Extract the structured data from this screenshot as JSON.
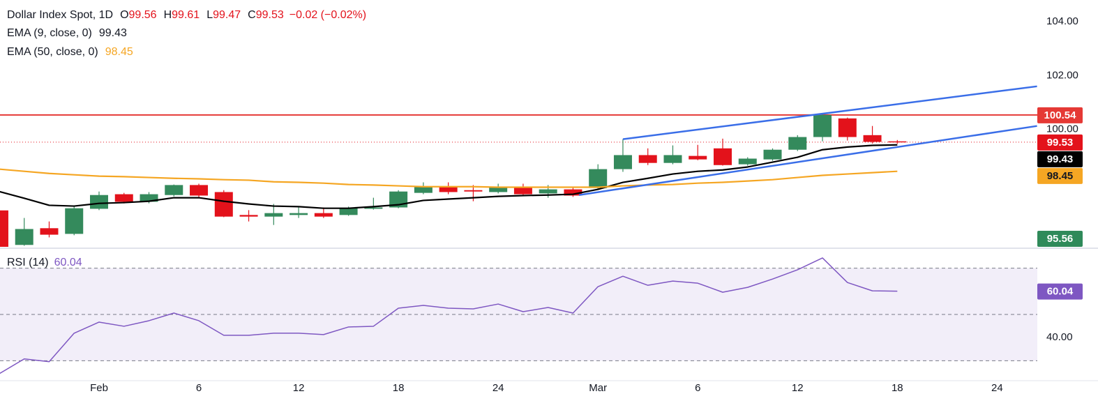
{
  "chart_data": [
    {
      "type": "candlestick",
      "title": "Dollar Index Spot, 1D",
      "ohlc_labels": [
        "O",
        "H",
        "L",
        "C"
      ],
      "change": "−0.02 (−0.02%)",
      "categories": [
        null,
        null,
        null,
        null,
        "Feb",
        null,
        null,
        null,
        "6",
        null,
        null,
        null,
        "12",
        null,
        null,
        null,
        "18",
        null,
        null,
        null,
        "24",
        null,
        null,
        null,
        "Mar",
        null,
        null,
        null,
        "6",
        null,
        null,
        null,
        "12",
        null,
        null,
        null,
        "18",
        null,
        null,
        null,
        "24"
      ],
      "open": [
        97.0,
        95.72,
        96.34,
        96.13,
        97.06,
        97.6,
        97.32,
        97.57,
        97.94,
        97.68,
        96.83,
        96.77,
        96.83,
        96.9,
        96.83,
        97.06,
        97.11,
        97.65,
        97.88,
        97.75,
        97.68,
        97.88,
        97.63,
        97.78,
        97.83,
        98.53,
        99.05,
        98.76,
        99.02,
        99.3,
        98.71,
        98.89,
        99.25,
        99.72,
        100.41,
        99.79,
        99.56,
        null,
        null,
        null,
        null
      ],
      "high": [
        97.1,
        96.72,
        96.59,
        97.14,
        97.7,
        97.65,
        97.68,
        97.96,
        97.99,
        97.75,
        97.01,
        97.24,
        97.11,
        97.11,
        97.14,
        97.47,
        97.75,
        98.04,
        98.04,
        97.94,
        97.99,
        97.99,
        97.94,
        97.88,
        98.71,
        99.64,
        99.3,
        99.41,
        99.43,
        99.66,
        98.97,
        99.3,
        99.79,
        100.59,
        100.44,
        100.13,
        99.61,
        null,
        null,
        null,
        null
      ],
      "low": [
        95.5,
        95.69,
        96.0,
        96.08,
        97.01,
        97.26,
        97.26,
        97.52,
        97.5,
        96.75,
        96.59,
        96.46,
        96.72,
        96.72,
        96.8,
        97.03,
        97.08,
        97.6,
        97.6,
        97.34,
        97.63,
        97.57,
        97.47,
        97.5,
        97.78,
        98.43,
        98.68,
        98.71,
        98.86,
        98.66,
        98.66,
        98.84,
        99.2,
        99.56,
        99.59,
        99.48,
        99.47,
        null,
        null,
        null,
        null
      ],
      "close": [
        95.6,
        96.31,
        96.1,
        97.08,
        97.57,
        97.32,
        97.6,
        97.94,
        97.55,
        96.77,
        96.77,
        96.9,
        96.9,
        96.77,
        97.08,
        97.11,
        97.7,
        97.86,
        97.68,
        97.7,
        97.88,
        97.6,
        97.78,
        97.55,
        98.53,
        99.05,
        98.76,
        99.05,
        98.89,
        98.68,
        98.92,
        99.25,
        99.72,
        100.54,
        99.72,
        99.54,
        99.53,
        null,
        null,
        null,
        null
      ],
      "up_color": "#348a5c",
      "down_color": "#e3121b",
      "series": [
        {
          "name": "EMA (9, close, 0)",
          "color": "#000000",
          "values": [
            97.7,
            97.45,
            97.19,
            97.16,
            97.26,
            97.29,
            97.34,
            97.47,
            97.47,
            97.34,
            97.24,
            97.16,
            97.14,
            97.08,
            97.08,
            97.14,
            97.21,
            97.37,
            97.42,
            97.47,
            97.52,
            97.55,
            97.57,
            97.6,
            97.78,
            98.04,
            98.19,
            98.35,
            98.45,
            98.5,
            98.61,
            98.79,
            98.97,
            99.25,
            99.35,
            99.41,
            99.43,
            null,
            null,
            null,
            null
          ]
        },
        {
          "name": "EMA (50, close, 0)",
          "color": "#f5a623",
          "values": [
            98.53,
            98.45,
            98.37,
            98.32,
            98.27,
            98.25,
            98.22,
            98.19,
            98.17,
            98.14,
            98.12,
            98.06,
            98.04,
            98.01,
            97.96,
            97.94,
            97.91,
            97.88,
            97.88,
            97.88,
            97.86,
            97.86,
            97.86,
            97.86,
            97.86,
            97.91,
            97.94,
            97.96,
            98.01,
            98.04,
            98.09,
            98.14,
            98.22,
            98.3,
            98.35,
            98.4,
            98.45,
            null,
            null,
            null,
            null
          ]
        }
      ],
      "hline": {
        "value": 100.54,
        "color": "#e53935"
      },
      "trendlines": [
        {
          "color": "#3a6ee8",
          "x": [
            25,
            41.6
          ],
          "y": [
            99.64,
            101.6
          ]
        },
        {
          "color": "#3a6ee8",
          "x": [
            23.24,
            41.6
          ],
          "y": [
            97.57,
            100.13
          ]
        }
      ],
      "price_labels": [
        {
          "value": 95.56,
          "color": "#2f8a5a"
        }
      ],
      "ylim": [
        95.65,
        104.8
      ],
      "yticks": [
        {
          "value": 104,
          "label": "104.00"
        },
        {
          "value": 102,
          "label": "102.00"
        },
        {
          "value": 100,
          "label": "100.00"
        }
      ]
    },
    {
      "type": "line",
      "title": "RSI (14)",
      "series": [
        {
          "color": "#7e57c2",
          "values": [
            24.4,
            30.8,
            29.6,
            41.9,
            46.7,
            44.9,
            47.3,
            50.6,
            47.3,
            41.0,
            41.0,
            41.9,
            41.9,
            41.3,
            44.6,
            44.9,
            52.7,
            53.9,
            52.7,
            52.4,
            54.5,
            51.2,
            53.0,
            50.6,
            62.0,
            66.5,
            62.6,
            64.4,
            63.5,
            59.6,
            61.7,
            65.3,
            69.3,
            74.4,
            63.8,
            60.2,
            60.04,
            null,
            null,
            null,
            null
          ]
        }
      ],
      "band": [
        30,
        70
      ],
      "hlines": [
        70,
        50,
        30
      ],
      "ylim": [
        21.7,
        78
      ],
      "yticks": [
        {
          "value": 40,
          "label": "40.00"
        }
      ]
    }
  ]
}
